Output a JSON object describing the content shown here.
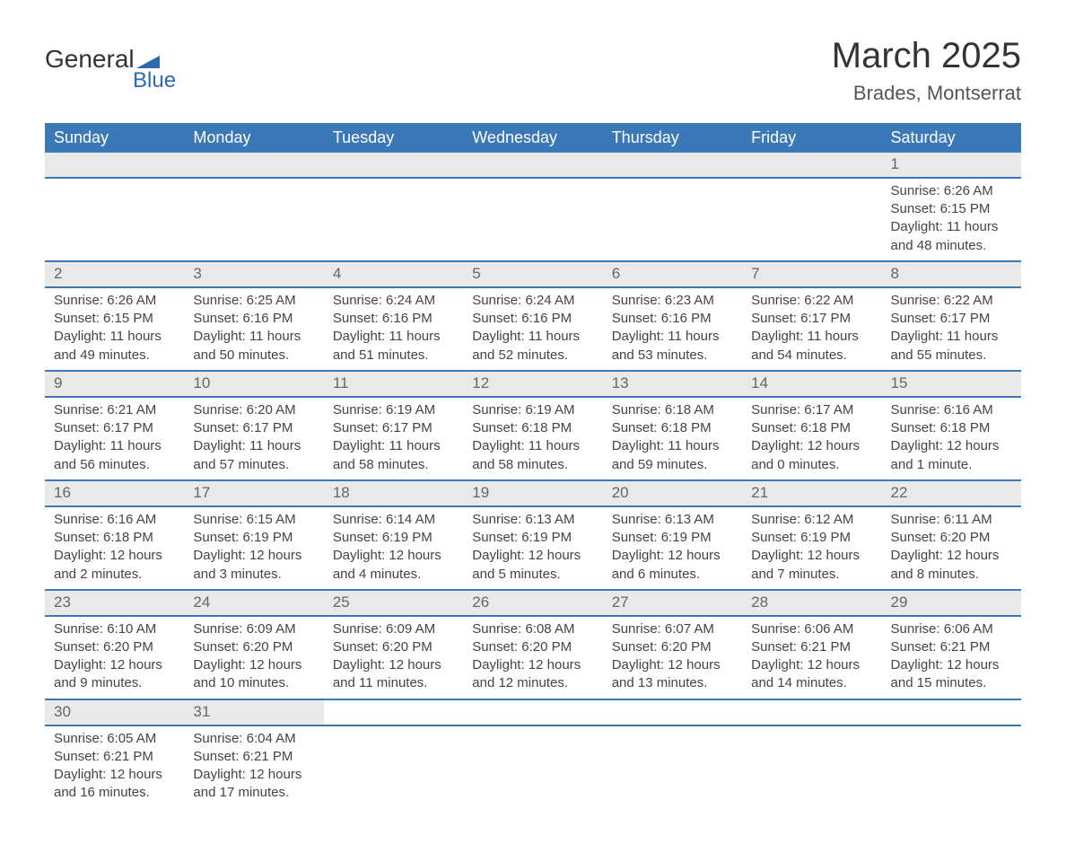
{
  "brand": {
    "name_top": "General",
    "name_bottom": "Blue",
    "logo_fill": "#2a6bb0"
  },
  "title": "March 2025",
  "location": "Brades, Montserrat",
  "colors": {
    "header_bg": "#3a78b8",
    "header_text": "#ffffff",
    "daynum_bg": "#e9e9e9",
    "row_border": "#3a78b8",
    "body_text": "#444444"
  },
  "font": {
    "family": "Arial",
    "header_size_pt": 18,
    "body_size_pt": 15,
    "title_size_pt": 40,
    "location_size_pt": 22
  },
  "weekdays": [
    "Sunday",
    "Monday",
    "Tuesday",
    "Wednesday",
    "Thursday",
    "Friday",
    "Saturday"
  ],
  "weeks": [
    [
      null,
      null,
      null,
      null,
      null,
      null,
      {
        "n": "1",
        "sr": "Sunrise: 6:26 AM",
        "ss": "Sunset: 6:15 PM",
        "dl": "Daylight: 11 hours and 48 minutes."
      }
    ],
    [
      {
        "n": "2",
        "sr": "Sunrise: 6:26 AM",
        "ss": "Sunset: 6:15 PM",
        "dl": "Daylight: 11 hours and 49 minutes."
      },
      {
        "n": "3",
        "sr": "Sunrise: 6:25 AM",
        "ss": "Sunset: 6:16 PM",
        "dl": "Daylight: 11 hours and 50 minutes."
      },
      {
        "n": "4",
        "sr": "Sunrise: 6:24 AM",
        "ss": "Sunset: 6:16 PM",
        "dl": "Daylight: 11 hours and 51 minutes."
      },
      {
        "n": "5",
        "sr": "Sunrise: 6:24 AM",
        "ss": "Sunset: 6:16 PM",
        "dl": "Daylight: 11 hours and 52 minutes."
      },
      {
        "n": "6",
        "sr": "Sunrise: 6:23 AM",
        "ss": "Sunset: 6:16 PM",
        "dl": "Daylight: 11 hours and 53 minutes."
      },
      {
        "n": "7",
        "sr": "Sunrise: 6:22 AM",
        "ss": "Sunset: 6:17 PM",
        "dl": "Daylight: 11 hours and 54 minutes."
      },
      {
        "n": "8",
        "sr": "Sunrise: 6:22 AM",
        "ss": "Sunset: 6:17 PM",
        "dl": "Daylight: 11 hours and 55 minutes."
      }
    ],
    [
      {
        "n": "9",
        "sr": "Sunrise: 6:21 AM",
        "ss": "Sunset: 6:17 PM",
        "dl": "Daylight: 11 hours and 56 minutes."
      },
      {
        "n": "10",
        "sr": "Sunrise: 6:20 AM",
        "ss": "Sunset: 6:17 PM",
        "dl": "Daylight: 11 hours and 57 minutes."
      },
      {
        "n": "11",
        "sr": "Sunrise: 6:19 AM",
        "ss": "Sunset: 6:17 PM",
        "dl": "Daylight: 11 hours and 58 minutes."
      },
      {
        "n": "12",
        "sr": "Sunrise: 6:19 AM",
        "ss": "Sunset: 6:18 PM",
        "dl": "Daylight: 11 hours and 58 minutes."
      },
      {
        "n": "13",
        "sr": "Sunrise: 6:18 AM",
        "ss": "Sunset: 6:18 PM",
        "dl": "Daylight: 11 hours and 59 minutes."
      },
      {
        "n": "14",
        "sr": "Sunrise: 6:17 AM",
        "ss": "Sunset: 6:18 PM",
        "dl": "Daylight: 12 hours and 0 minutes."
      },
      {
        "n": "15",
        "sr": "Sunrise: 6:16 AM",
        "ss": "Sunset: 6:18 PM",
        "dl": "Daylight: 12 hours and 1 minute."
      }
    ],
    [
      {
        "n": "16",
        "sr": "Sunrise: 6:16 AM",
        "ss": "Sunset: 6:18 PM",
        "dl": "Daylight: 12 hours and 2 minutes."
      },
      {
        "n": "17",
        "sr": "Sunrise: 6:15 AM",
        "ss": "Sunset: 6:19 PM",
        "dl": "Daylight: 12 hours and 3 minutes."
      },
      {
        "n": "18",
        "sr": "Sunrise: 6:14 AM",
        "ss": "Sunset: 6:19 PM",
        "dl": "Daylight: 12 hours and 4 minutes."
      },
      {
        "n": "19",
        "sr": "Sunrise: 6:13 AM",
        "ss": "Sunset: 6:19 PM",
        "dl": "Daylight: 12 hours and 5 minutes."
      },
      {
        "n": "20",
        "sr": "Sunrise: 6:13 AM",
        "ss": "Sunset: 6:19 PM",
        "dl": "Daylight: 12 hours and 6 minutes."
      },
      {
        "n": "21",
        "sr": "Sunrise: 6:12 AM",
        "ss": "Sunset: 6:19 PM",
        "dl": "Daylight: 12 hours and 7 minutes."
      },
      {
        "n": "22",
        "sr": "Sunrise: 6:11 AM",
        "ss": "Sunset: 6:20 PM",
        "dl": "Daylight: 12 hours and 8 minutes."
      }
    ],
    [
      {
        "n": "23",
        "sr": "Sunrise: 6:10 AM",
        "ss": "Sunset: 6:20 PM",
        "dl": "Daylight: 12 hours and 9 minutes."
      },
      {
        "n": "24",
        "sr": "Sunrise: 6:09 AM",
        "ss": "Sunset: 6:20 PM",
        "dl": "Daylight: 12 hours and 10 minutes."
      },
      {
        "n": "25",
        "sr": "Sunrise: 6:09 AM",
        "ss": "Sunset: 6:20 PM",
        "dl": "Daylight: 12 hours and 11 minutes."
      },
      {
        "n": "26",
        "sr": "Sunrise: 6:08 AM",
        "ss": "Sunset: 6:20 PM",
        "dl": "Daylight: 12 hours and 12 minutes."
      },
      {
        "n": "27",
        "sr": "Sunrise: 6:07 AM",
        "ss": "Sunset: 6:20 PM",
        "dl": "Daylight: 12 hours and 13 minutes."
      },
      {
        "n": "28",
        "sr": "Sunrise: 6:06 AM",
        "ss": "Sunset: 6:21 PM",
        "dl": "Daylight: 12 hours and 14 minutes."
      },
      {
        "n": "29",
        "sr": "Sunrise: 6:06 AM",
        "ss": "Sunset: 6:21 PM",
        "dl": "Daylight: 12 hours and 15 minutes."
      }
    ],
    [
      {
        "n": "30",
        "sr": "Sunrise: 6:05 AM",
        "ss": "Sunset: 6:21 PM",
        "dl": "Daylight: 12 hours and 16 minutes."
      },
      {
        "n": "31",
        "sr": "Sunrise: 6:04 AM",
        "ss": "Sunset: 6:21 PM",
        "dl": "Daylight: 12 hours and 17 minutes."
      },
      null,
      null,
      null,
      null,
      null
    ]
  ]
}
